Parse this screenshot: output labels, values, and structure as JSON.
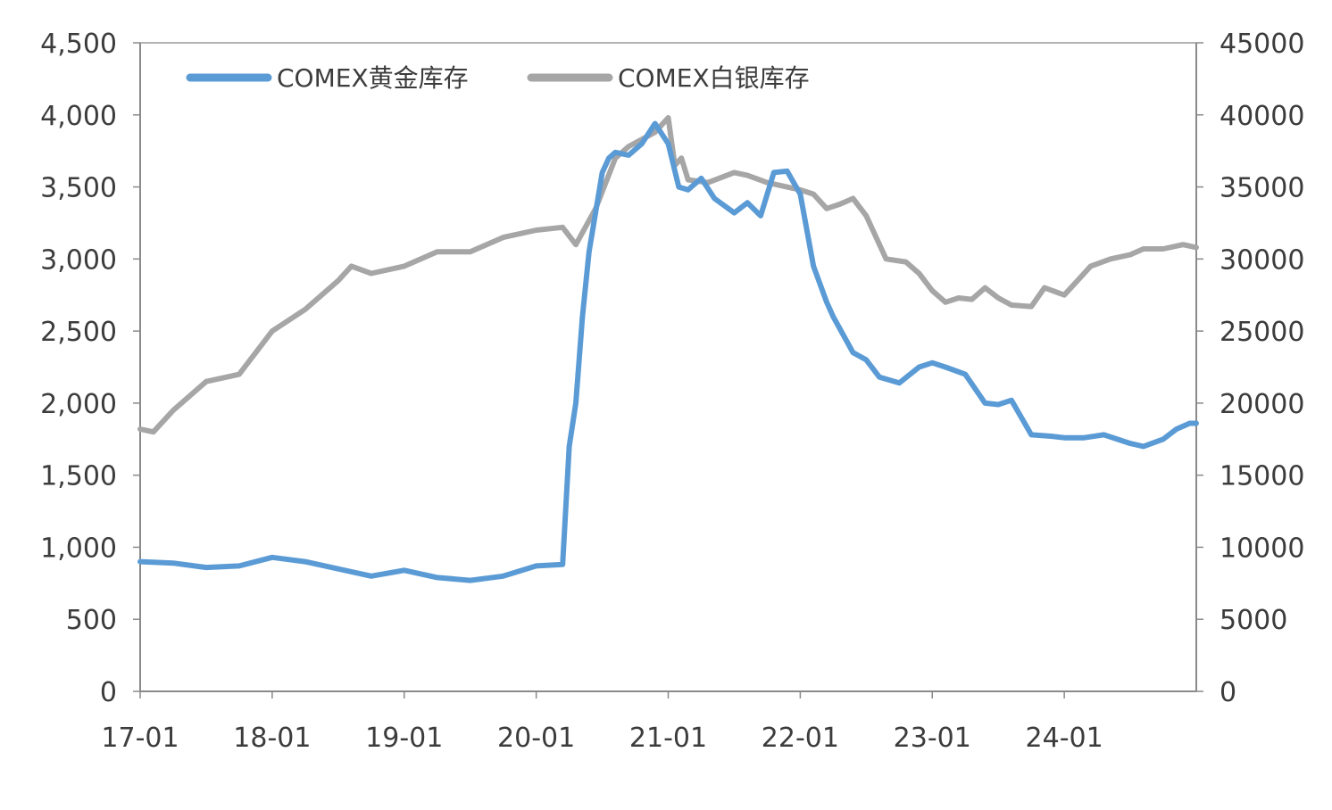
{
  "chart_data": {
    "type": "line",
    "title": "",
    "xlabel": "",
    "ylabel": "",
    "x_ticks": [
      "17-01",
      "18-01",
      "19-01",
      "20-01",
      "21-01",
      "22-01",
      "23-01",
      "24-01"
    ],
    "x_range": [
      2017.0,
      2025.0
    ],
    "y_left": {
      "range": [
        0,
        4500
      ],
      "ticks": [
        "0",
        "500",
        "1,000",
        "1,500",
        "2,000",
        "2,500",
        "3,000",
        "3,500",
        "4,000",
        "4,500"
      ]
    },
    "y_right": {
      "range": [
        0,
        45000
      ],
      "ticks": [
        "0",
        "5000",
        "10000",
        "15000",
        "20000",
        "25000",
        "30000",
        "35000",
        "40000",
        "45000"
      ]
    },
    "legend_position": "top-left",
    "grid": false,
    "series": [
      {
        "name": "COMEX黄金库存",
        "axis": "left",
        "color": "#5b9bd5",
        "x": [
          2017.0,
          2017.25,
          2017.5,
          2017.75,
          2018.0,
          2018.25,
          2018.5,
          2018.75,
          2019.0,
          2019.25,
          2019.5,
          2019.75,
          2020.0,
          2020.2,
          2020.25,
          2020.3,
          2020.35,
          2020.4,
          2020.5,
          2020.55,
          2020.6,
          2020.7,
          2020.8,
          2020.9,
          2021.0,
          2021.08,
          2021.15,
          2021.25,
          2021.35,
          2021.5,
          2021.6,
          2021.7,
          2021.8,
          2021.9,
          2022.0,
          2022.1,
          2022.2,
          2022.25,
          2022.4,
          2022.5,
          2022.6,
          2022.75,
          2022.9,
          2023.0,
          2023.1,
          2023.25,
          2023.4,
          2023.5,
          2023.6,
          2023.75,
          2023.9,
          2024.0,
          2024.15,
          2024.3,
          2024.5,
          2024.6,
          2024.75,
          2024.85,
          2024.95,
          2025.0
        ],
        "values": [
          900,
          890,
          860,
          870,
          930,
          900,
          850,
          800,
          840,
          790,
          770,
          800,
          870,
          880,
          1700,
          2000,
          2600,
          3050,
          3600,
          3700,
          3740,
          3720,
          3800,
          3940,
          3800,
          3500,
          3480,
          3560,
          3420,
          3320,
          3390,
          3300,
          3600,
          3610,
          3450,
          2950,
          2700,
          2600,
          2350,
          2300,
          2180,
          2140,
          2250,
          2280,
          2250,
          2200,
          2000,
          1990,
          2020,
          1780,
          1770,
          1760,
          1760,
          1780,
          1720,
          1700,
          1750,
          1820,
          1860,
          1860
        ]
      },
      {
        "name": "COMEX白银库存",
        "axis": "right",
        "color": "#a6a6a6",
        "x": [
          2017.0,
          2017.1,
          2017.25,
          2017.5,
          2017.75,
          2018.0,
          2018.25,
          2018.5,
          2018.6,
          2018.75,
          2019.0,
          2019.25,
          2019.5,
          2019.75,
          2020.0,
          2020.2,
          2020.3,
          2020.45,
          2020.6,
          2020.7,
          2020.9,
          2021.0,
          2021.05,
          2021.1,
          2021.15,
          2021.3,
          2021.5,
          2021.6,
          2021.75,
          2022.0,
          2022.1,
          2022.2,
          2022.3,
          2022.4,
          2022.5,
          2022.65,
          2022.8,
          2022.9,
          2023.0,
          2023.1,
          2023.2,
          2023.3,
          2023.4,
          2023.5,
          2023.6,
          2023.75,
          2023.85,
          2024.0,
          2024.1,
          2024.2,
          2024.35,
          2024.5,
          2024.6,
          2024.75,
          2024.9,
          2025.0
        ],
        "values": [
          18200,
          18000,
          19500,
          21500,
          22000,
          25000,
          26500,
          28500,
          29500,
          29000,
          29500,
          30500,
          30500,
          31500,
          32000,
          32200,
          31000,
          33500,
          37000,
          37800,
          38800,
          39800,
          36500,
          37000,
          35500,
          35300,
          36000,
          35800,
          35300,
          34800,
          34500,
          33500,
          33800,
          34200,
          33000,
          30000,
          29800,
          29000,
          27800,
          27000,
          27300,
          27200,
          28000,
          27300,
          26800,
          26700,
          28000,
          27500,
          28500,
          29500,
          30000,
          30300,
          30700,
          30700,
          31000,
          30800
        ]
      }
    ]
  }
}
